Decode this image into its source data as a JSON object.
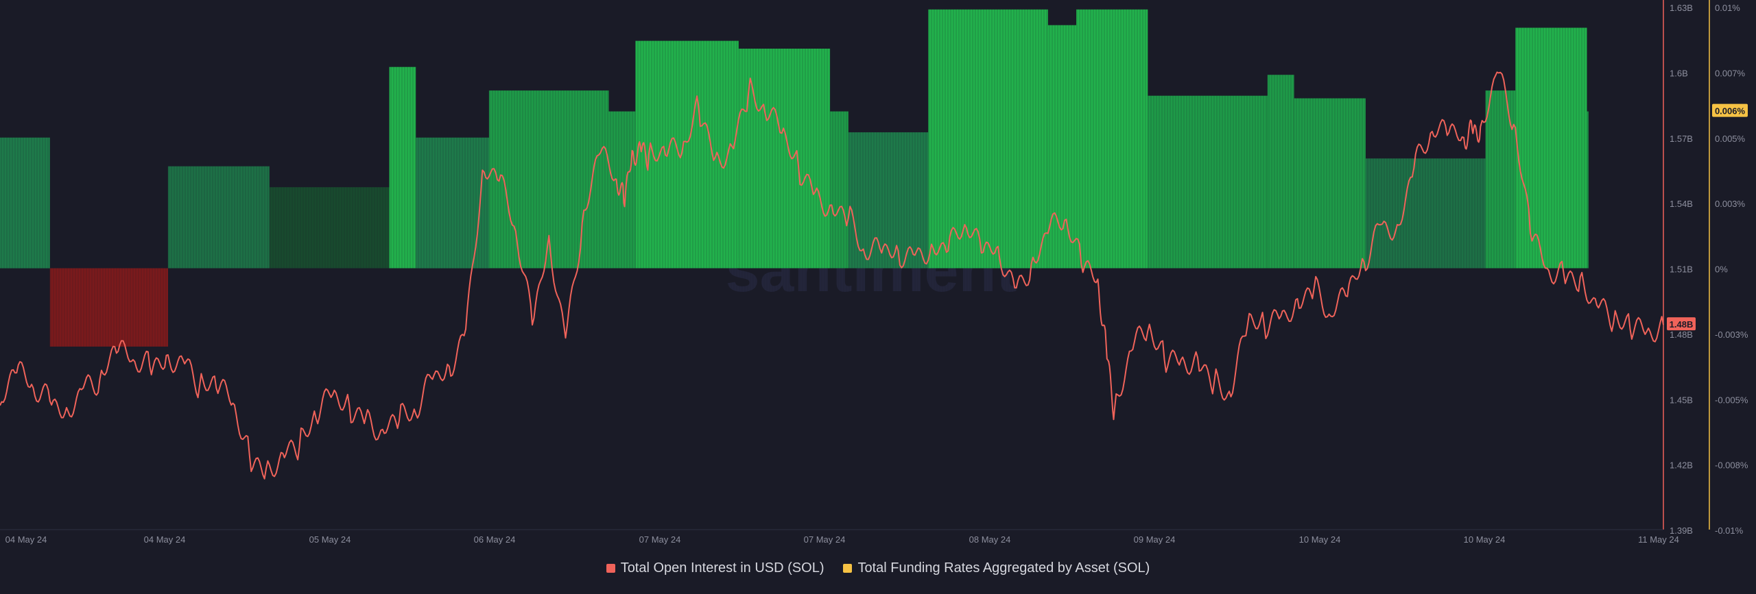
{
  "chart_data": {
    "type": "bar+line",
    "watermark": "santiment",
    "x_tick_labels": [
      "04 May 24",
      "04 May 24",
      "05 May 24",
      "06 May 24",
      "07 May 24",
      "07 May 24",
      "08 May 24",
      "09 May 24",
      "10 May 24",
      "10 May 24",
      "11 May 24"
    ],
    "left_axis": {
      "ticks": [
        "1.63B",
        "1.6B",
        "1.57B",
        "1.54B",
        "1.51B",
        "1.48B",
        "1.45B",
        "1.42B",
        "1.39B"
      ],
      "range": [
        1.39,
        1.63
      ],
      "units": "B USD"
    },
    "right_axis": {
      "ticks": [
        "0.01%",
        "0.007%",
        "0.005%",
        "0.003%",
        "0%",
        "-0.003%",
        "-0.005%",
        "-0.008%",
        "-0.01%"
      ],
      "range": [
        -0.01,
        0.01
      ],
      "units": "%"
    },
    "current_labels": {
      "open_interest": "1.48B",
      "funding_rate": "0.006%"
    },
    "series": [
      {
        "name": "Total Open Interest in USD (SOL)",
        "type": "line",
        "color": "#f0635a",
        "x": [
          0,
          0.01,
          0.02,
          0.03,
          0.04,
          0.05,
          0.06,
          0.07,
          0.08,
          0.09,
          0.1,
          0.11,
          0.12,
          0.13,
          0.14,
          0.15,
          0.16,
          0.17,
          0.18,
          0.19,
          0.2,
          0.21,
          0.22,
          0.23,
          0.24,
          0.25,
          0.26,
          0.27,
          0.28,
          0.29,
          0.3,
          0.31,
          0.32,
          0.33,
          0.34,
          0.35,
          0.36,
          0.37,
          0.375,
          0.38,
          0.385,
          0.39,
          0.4,
          0.41,
          0.42,
          0.43,
          0.44,
          0.45,
          0.46,
          0.47,
          0.48,
          0.49,
          0.5,
          0.51,
          0.52,
          0.53,
          0.54,
          0.55,
          0.56,
          0.57,
          0.58,
          0.59,
          0.6,
          0.61,
          0.62,
          0.63,
          0.64,
          0.65,
          0.66,
          0.665,
          0.67,
          0.68,
          0.69,
          0.7,
          0.71,
          0.72,
          0.73,
          0.74,
          0.75,
          0.76,
          0.77,
          0.78,
          0.79,
          0.8,
          0.81,
          0.82,
          0.83,
          0.84,
          0.85,
          0.86,
          0.87,
          0.88,
          0.885,
          0.89,
          0.9,
          0.91,
          0.92,
          0.93,
          0.94,
          0.95,
          0.96,
          0.97,
          0.98,
          0.99,
          1.0
        ],
        "values": [
          1.447,
          1.462,
          1.455,
          1.449,
          1.446,
          1.455,
          1.459,
          1.471,
          1.468,
          1.465,
          1.47,
          1.468,
          1.456,
          1.455,
          1.448,
          1.424,
          1.418,
          1.425,
          1.428,
          1.441,
          1.452,
          1.447,
          1.442,
          1.436,
          1.44,
          1.443,
          1.459,
          1.465,
          1.482,
          1.555,
          1.55,
          1.527,
          1.484,
          1.525,
          1.478,
          1.531,
          1.562,
          1.551,
          1.54,
          1.564,
          1.566,
          1.562,
          1.562,
          1.563,
          1.584,
          1.561,
          1.566,
          1.591,
          1.581,
          1.572,
          1.557,
          1.545,
          1.539,
          1.533,
          1.516,
          1.517,
          1.518,
          1.516,
          1.521,
          1.518,
          1.53,
          1.517,
          1.52,
          1.501,
          1.512,
          1.526,
          1.532,
          1.512,
          1.505,
          1.475,
          1.445,
          1.472,
          1.481,
          1.468,
          1.468,
          1.469,
          1.458,
          1.451,
          1.484,
          1.484,
          1.488,
          1.496,
          1.501,
          1.488,
          1.497,
          1.513,
          1.53,
          1.53,
          1.556,
          1.572,
          1.571,
          1.57,
          1.574,
          1.575,
          1.6,
          1.576,
          1.526,
          1.51,
          1.508,
          1.506,
          1.493,
          1.485,
          1.482,
          1.481,
          1.484
        ]
      },
      {
        "name": "Total Funding Rates Aggregated by Asset (SOL)",
        "type": "bar",
        "color": "#f6c244",
        "segments": [
          {
            "x0": 0.0,
            "x1": 0.03,
            "value": 0.005
          },
          {
            "x0": 0.03,
            "x1": 0.101,
            "value": -0.003
          },
          {
            "x0": 0.101,
            "x1": 0.162,
            "value": 0.0039
          },
          {
            "x0": 0.162,
            "x1": 0.234,
            "value": 0.0031
          },
          {
            "x0": 0.234,
            "x1": 0.25,
            "value": 0.0077
          },
          {
            "x0": 0.25,
            "x1": 0.294,
            "value": 0.005
          },
          {
            "x0": 0.294,
            "x1": 0.366,
            "value": 0.0068
          },
          {
            "x0": 0.366,
            "x1": 0.382,
            "value": 0.006
          },
          {
            "x0": 0.382,
            "x1": 0.444,
            "value": 0.0087
          },
          {
            "x0": 0.444,
            "x1": 0.499,
            "value": 0.0084
          },
          {
            "x0": 0.499,
            "x1": 0.51,
            "value": 0.006
          },
          {
            "x0": 0.51,
            "x1": 0.558,
            "value": 0.0052
          },
          {
            "x0": 0.558,
            "x1": 0.63,
            "value": 0.0099
          },
          {
            "x0": 0.63,
            "x1": 0.647,
            "value": 0.0093
          },
          {
            "x0": 0.647,
            "x1": 0.69,
            "value": 0.0099
          },
          {
            "x0": 0.69,
            "x1": 0.762,
            "value": 0.0066
          },
          {
            "x0": 0.762,
            "x1": 0.778,
            "value": 0.0074
          },
          {
            "x0": 0.778,
            "x1": 0.821,
            "value": 0.0065
          },
          {
            "x0": 0.821,
            "x1": 0.893,
            "value": 0.0042
          },
          {
            "x0": 0.893,
            "x1": 0.911,
            "value": 0.0068
          },
          {
            "x0": 0.911,
            "x1": 0.954,
            "value": 0.0092
          },
          {
            "x0": 0.954,
            "x1": 0.955,
            "value": 0.006
          }
        ]
      }
    ]
  },
  "legend": [
    {
      "label": "Total Open Interest in USD (SOL)",
      "color": "#f0635a"
    },
    {
      "label": "Total Funding Rates Aggregated by Asset (SOL)",
      "color": "#f6c244"
    }
  ]
}
